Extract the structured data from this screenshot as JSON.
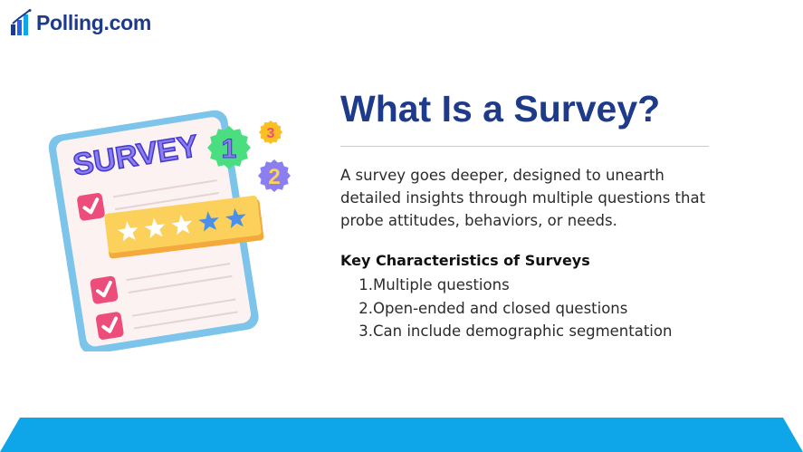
{
  "brand": {
    "name": "Polling.com"
  },
  "illustration": {
    "clipboard_heading": "SURVEY",
    "badges": [
      "1",
      "2",
      "3"
    ],
    "rating": {
      "filled": 2,
      "total": 5
    }
  },
  "slide": {
    "title": "What Is a Survey?",
    "description": "A survey goes deeper, designed to unearth detailed insights through multiple questions that probe attitudes, behaviors, or needs.",
    "subheading": "Key Characteristics of Surveys",
    "characteristics": [
      {
        "number": "1.",
        "text": "Multiple questions"
      },
      {
        "number": "2.",
        "text": "Open-ended and closed questions"
      },
      {
        "number": "3.",
        "text": "Can include demographic segmentation"
      }
    ]
  },
  "colors": {
    "navy": "#1e3a8a",
    "footer_blue": "#0ea5e9",
    "clipboard_border": "#7cc4ea",
    "paper": "#fdf2f2",
    "check_pink": "#ec4d7a",
    "rating_yellow": "#fcd15b",
    "star_blue": "#4b8fe8",
    "badge_green": "#4ade80",
    "badge_purple": "#8b7ef0",
    "badge_orange": "#fbbf24"
  }
}
